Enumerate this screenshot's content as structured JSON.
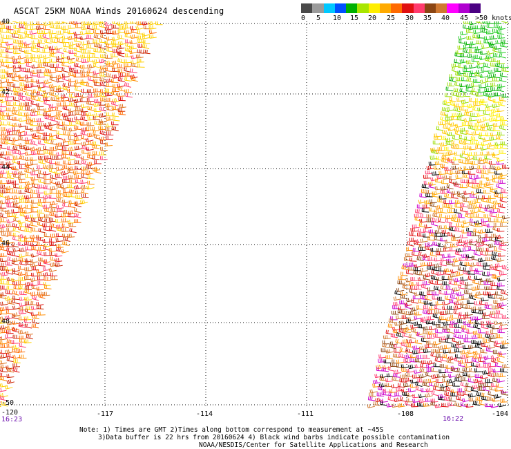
{
  "title": "ASCAT 25KM NOAA Winds 20160624 descending",
  "legend": {
    "colors": [
      "#4a4a4a",
      "#9b9b9b",
      "#00c8ff",
      "#0050ff",
      "#00b000",
      "#a8e600",
      "#ffee00",
      "#ffaa00",
      "#ff6a00",
      "#e01010",
      "#ff3b6e",
      "#8b4513",
      "#d07830",
      "#ff00ff",
      "#b000d0",
      "#4b0082"
    ],
    "labels": [
      "0",
      "5",
      "10",
      "15",
      "20",
      "25",
      "30",
      "35",
      "40",
      "45",
      ">50 knots"
    ]
  },
  "axes": {
    "lon_labels": [
      "-120",
      "-117",
      "-114",
      "-111",
      "-108",
      "-104"
    ],
    "lat_labels": [
      "40",
      "42",
      "44",
      "46",
      "48",
      "-50"
    ]
  },
  "times": {
    "left": "16:23",
    "right": "16:22"
  },
  "notes": {
    "line1": "Note: 1) Times are GMT 2)Times along bottom correspond to measurement at ~45S",
    "line2": "3)Data buffer is 22 hrs from 20160624 4) Black wind barbs indicate possible contamination",
    "line3": "NOAA/NESDIS/Center for Satellite Applications and Research"
  },
  "swaths": {
    "left_palette": [
      "#ff8c00",
      "#ff6a00",
      "#e0701a",
      "#ffd000",
      "#ff3b6e",
      "#e01010",
      "#cc2200"
    ],
    "right_palette_top": [
      "#00b000",
      "#22cc22",
      "#99dd00",
      "#ffee00",
      "#ffc800"
    ],
    "right_palette_bottom": [
      "#ff8c00",
      "#e01010",
      "#ff3b6e",
      "#8b4513",
      "#d07830",
      "#000000",
      "#cc00cc"
    ]
  }
}
